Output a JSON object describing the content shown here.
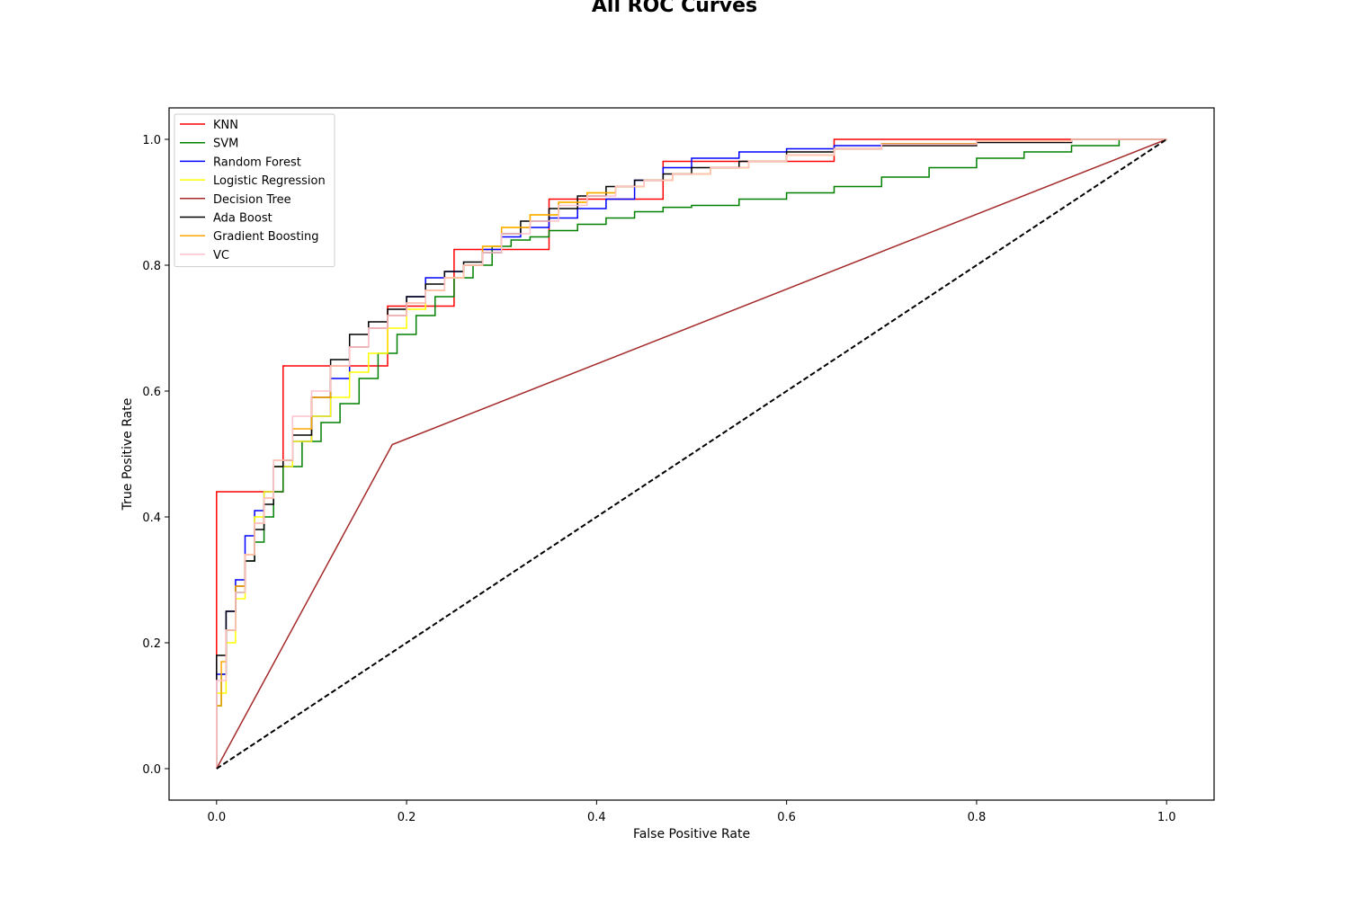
{
  "chart_data": {
    "type": "line",
    "title": "All ROC Curves",
    "xlabel": "False Positive Rate",
    "ylabel": "True Positive Rate",
    "xlim": [
      -0.05,
      1.05
    ],
    "ylim": [
      -0.05,
      1.05
    ],
    "xticks": [
      0.0,
      0.2,
      0.4,
      0.6,
      0.8,
      1.0
    ],
    "yticks": [
      0.0,
      0.2,
      0.4,
      0.6,
      0.8,
      1.0
    ],
    "xtick_labels": [
      "0.0",
      "0.2",
      "0.4",
      "0.6",
      "0.8",
      "1.0"
    ],
    "ytick_labels": [
      "0.0",
      "0.2",
      "0.4",
      "0.6",
      "0.8",
      "1.0"
    ],
    "grid": false,
    "legend_position": "top-left",
    "series": [
      {
        "name": "KNN",
        "color": "#ff0000",
        "x": [
          0,
          0.07,
          0.18,
          0.25,
          0.35,
          0.47,
          0.65,
          1.0
        ],
        "y": [
          0,
          0.44,
          0.64,
          0.735,
          0.825,
          0.905,
          0.965,
          1.0
        ]
      },
      {
        "name": "SVM",
        "color": "#008000",
        "x": [
          0,
          0.005,
          0.01,
          0.02,
          0.03,
          0.04,
          0.05,
          0.06,
          0.07,
          0.09,
          0.11,
          0.13,
          0.15,
          0.17,
          0.19,
          0.21,
          0.23,
          0.25,
          0.27,
          0.29,
          0.31,
          0.33,
          0.35,
          0.38,
          0.41,
          0.44,
          0.47,
          0.5,
          0.55,
          0.6,
          0.65,
          0.7,
          0.75,
          0.8,
          0.85,
          0.9,
          0.95,
          1.0
        ],
        "y": [
          0,
          0.1,
          0.15,
          0.22,
          0.28,
          0.33,
          0.36,
          0.4,
          0.44,
          0.48,
          0.52,
          0.55,
          0.58,
          0.62,
          0.66,
          0.69,
          0.72,
          0.75,
          0.78,
          0.8,
          0.83,
          0.84,
          0.845,
          0.855,
          0.865,
          0.875,
          0.885,
          0.892,
          0.895,
          0.905,
          0.915,
          0.925,
          0.94,
          0.955,
          0.97,
          0.98,
          0.99,
          1.0
        ]
      },
      {
        "name": "Random Forest",
        "color": "#0000ff",
        "x": [
          0,
          0.01,
          0.02,
          0.03,
          0.04,
          0.05,
          0.06,
          0.08,
          0.1,
          0.12,
          0.14,
          0.16,
          0.18,
          0.2,
          0.22,
          0.24,
          0.26,
          0.28,
          0.3,
          0.32,
          0.35,
          0.38,
          0.41,
          0.44,
          0.47,
          0.5,
          0.55,
          0.6,
          0.65,
          0.7,
          0.8,
          0.9,
          1.0
        ],
        "y": [
          0,
          0.15,
          0.25,
          0.3,
          0.37,
          0.41,
          0.44,
          0.48,
          0.52,
          0.56,
          0.62,
          0.67,
          0.7,
          0.72,
          0.75,
          0.78,
          0.79,
          0.8,
          0.825,
          0.845,
          0.86,
          0.875,
          0.89,
          0.905,
          0.935,
          0.955,
          0.97,
          0.98,
          0.985,
          0.99,
          0.993,
          0.996,
          1.0
        ]
      },
      {
        "name": "Logistic Regression",
        "color": "#ffff00",
        "x": [
          0,
          0.01,
          0.02,
          0.03,
          0.04,
          0.05,
          0.06,
          0.08,
          0.1,
          0.12,
          0.14,
          0.16,
          0.18,
          0.2,
          0.22,
          0.24,
          0.26,
          0.28,
          0.3,
          0.33,
          0.36,
          0.39,
          0.42,
          0.45,
          0.48,
          0.52,
          0.56,
          0.6,
          0.65,
          0.7,
          0.8,
          0.9,
          1.0
        ],
        "y": [
          0,
          0.12,
          0.2,
          0.27,
          0.34,
          0.4,
          0.44,
          0.48,
          0.52,
          0.56,
          0.59,
          0.63,
          0.66,
          0.7,
          0.73,
          0.76,
          0.78,
          0.8,
          0.83,
          0.86,
          0.88,
          0.9,
          0.915,
          0.925,
          0.935,
          0.945,
          0.955,
          0.965,
          0.975,
          0.985,
          0.992,
          0.997,
          1.0
        ]
      },
      {
        "name": "Decision Tree",
        "color": "#a52a2a",
        "x": [
          0,
          0.185,
          1.0
        ],
        "y": [
          0,
          0.515,
          1.0
        ]
      },
      {
        "name": "Ada Boost",
        "color": "#000000",
        "x": [
          0,
          0.01,
          0.02,
          0.03,
          0.04,
          0.05,
          0.06,
          0.07,
          0.08,
          0.1,
          0.12,
          0.14,
          0.16,
          0.18,
          0.2,
          0.22,
          0.24,
          0.26,
          0.28,
          0.3,
          0.32,
          0.35,
          0.38,
          0.41,
          0.44,
          0.47,
          0.5,
          0.55,
          0.6,
          0.65,
          0.7,
          0.8,
          0.9,
          1.0
        ],
        "y": [
          0,
          0.18,
          0.25,
          0.29,
          0.33,
          0.38,
          0.42,
          0.48,
          0.49,
          0.53,
          0.59,
          0.65,
          0.69,
          0.71,
          0.73,
          0.75,
          0.77,
          0.79,
          0.805,
          0.82,
          0.85,
          0.87,
          0.89,
          0.91,
          0.925,
          0.935,
          0.945,
          0.955,
          0.965,
          0.98,
          0.985,
          0.99,
          0.995,
          1.0
        ]
      },
      {
        "name": "Gradient Boosting",
        "color": "#ffa500",
        "x": [
          0,
          0.005,
          0.01,
          0.02,
          0.03,
          0.04,
          0.05,
          0.06,
          0.08,
          0.1,
          0.12,
          0.14,
          0.16,
          0.18,
          0.2,
          0.22,
          0.24,
          0.26,
          0.28,
          0.3,
          0.33,
          0.36,
          0.39,
          0.42,
          0.45,
          0.48,
          0.52,
          0.56,
          0.6,
          0.65,
          0.7,
          0.8,
          0.9,
          1.0
        ],
        "y": [
          0,
          0.1,
          0.17,
          0.22,
          0.29,
          0.34,
          0.39,
          0.43,
          0.49,
          0.54,
          0.59,
          0.64,
          0.67,
          0.7,
          0.72,
          0.74,
          0.76,
          0.78,
          0.8,
          0.83,
          0.86,
          0.88,
          0.9,
          0.915,
          0.925,
          0.935,
          0.945,
          0.955,
          0.965,
          0.975,
          0.985,
          0.993,
          0.997,
          1.0
        ]
      },
      {
        "name": "VC",
        "color": "#ffc0cb",
        "x": [
          0,
          0.01,
          0.02,
          0.03,
          0.04,
          0.05,
          0.06,
          0.08,
          0.1,
          0.12,
          0.14,
          0.16,
          0.18,
          0.2,
          0.22,
          0.24,
          0.26,
          0.28,
          0.3,
          0.33,
          0.36,
          0.39,
          0.42,
          0.45,
          0.48,
          0.52,
          0.56,
          0.6,
          0.65,
          0.7,
          0.8,
          0.9,
          1.0
        ],
        "y": [
          0,
          0.14,
          0.22,
          0.28,
          0.34,
          0.39,
          0.43,
          0.49,
          0.56,
          0.6,
          0.64,
          0.67,
          0.7,
          0.72,
          0.74,
          0.76,
          0.78,
          0.8,
          0.82,
          0.85,
          0.87,
          0.895,
          0.91,
          0.925,
          0.935,
          0.945,
          0.955,
          0.965,
          0.975,
          0.985,
          0.992,
          0.997,
          1.0
        ]
      }
    ],
    "reference_line": {
      "color": "#000000",
      "style": "dashed",
      "x": [
        0,
        1
      ],
      "y": [
        0,
        1
      ]
    }
  }
}
